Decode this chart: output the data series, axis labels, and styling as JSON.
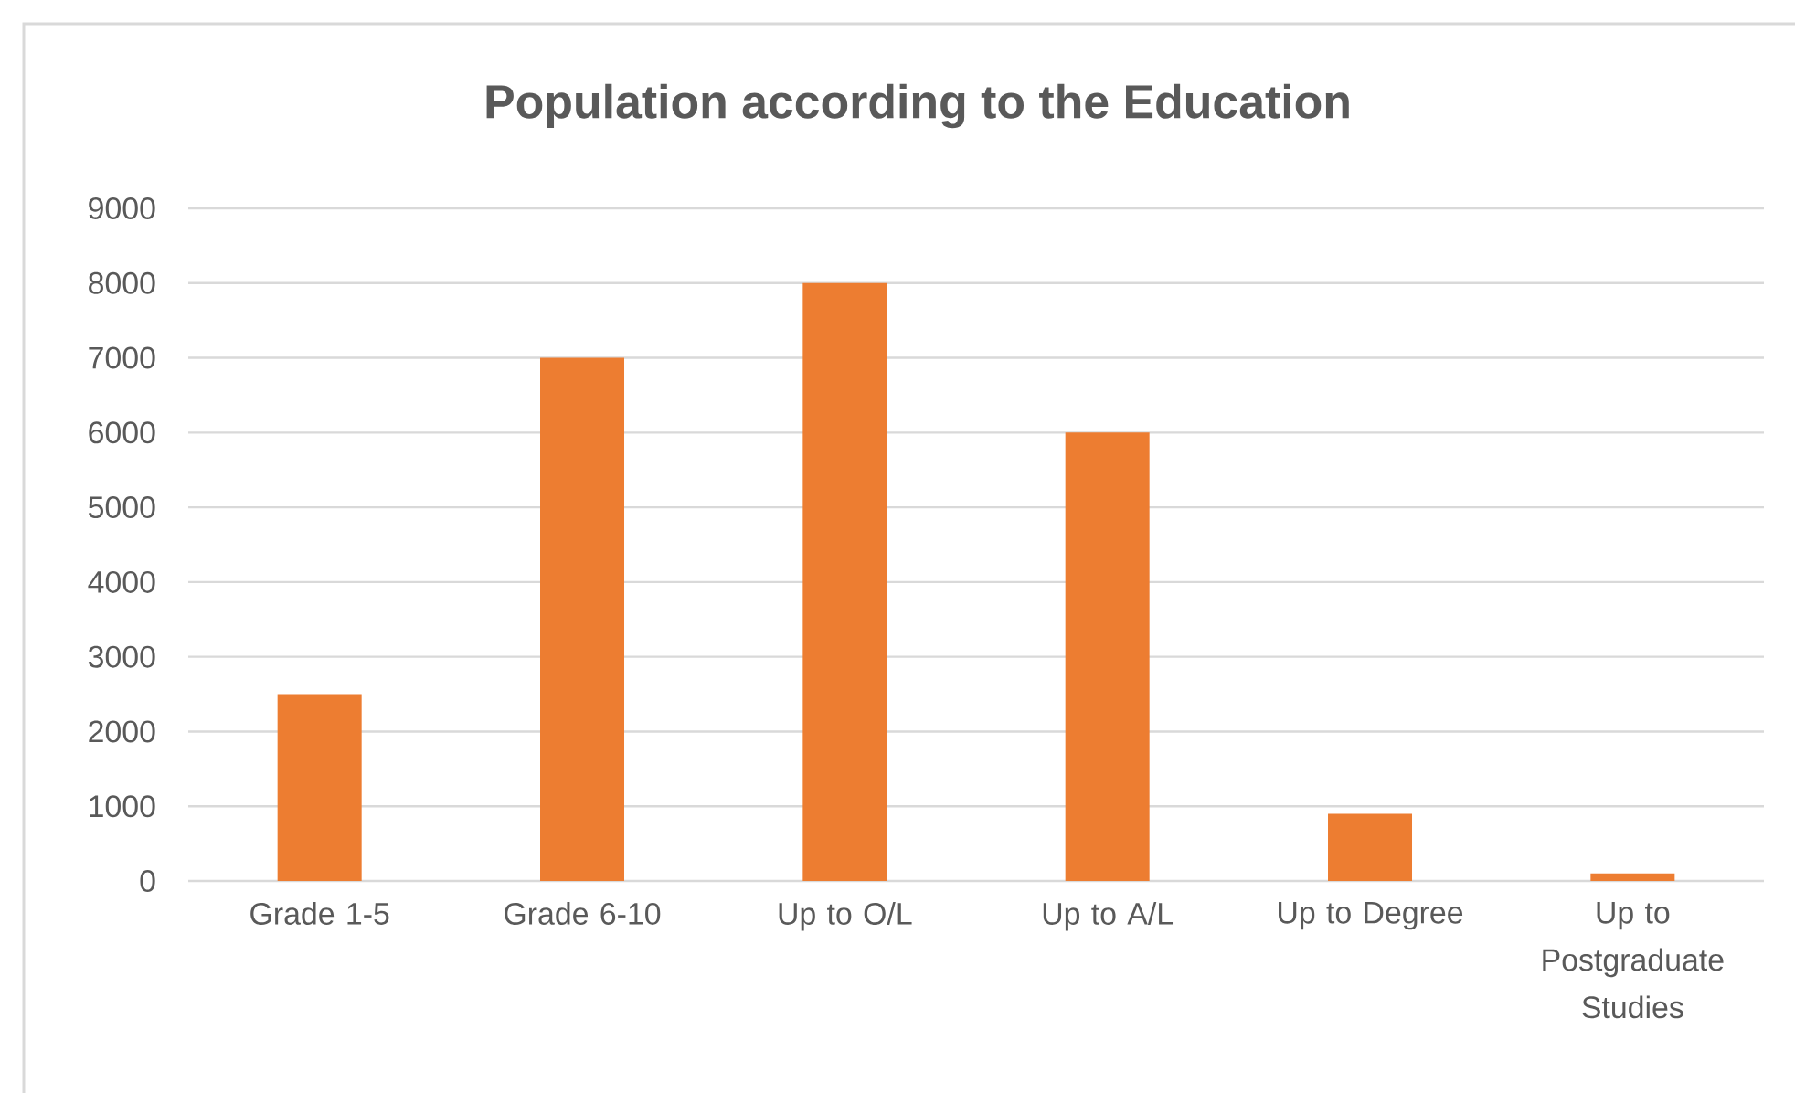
{
  "chart_data": {
    "type": "bar",
    "title": "Population according to the Education",
    "categories": [
      "Grade 1-5",
      "Grade 6-10",
      "Up to O/L",
      "Up to A/L",
      "Up to Degree",
      "Up to Postgraduate Studies"
    ],
    "values": [
      2500,
      7000,
      8000,
      6000,
      900,
      100
    ],
    "color": "#ed7d31",
    "ylim": [
      0,
      9000
    ],
    "yticks": [
      0,
      1000,
      2000,
      3000,
      4000,
      5000,
      6000,
      7000,
      8000,
      9000
    ],
    "grid": "y"
  }
}
